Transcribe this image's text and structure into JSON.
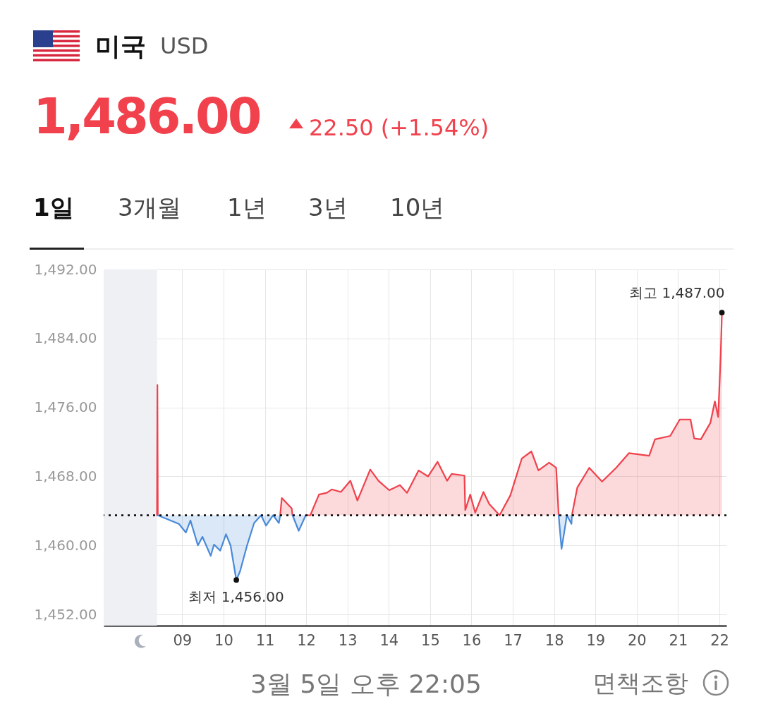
{
  "chart_data": {
    "type": "area",
    "title": "미국",
    "subtitle": "USD",
    "xlim": [
      7.1,
      22.17
    ],
    "xticks": [
      {
        "value": 9,
        "label": "09"
      },
      10,
      11,
      12,
      13,
      14,
      15,
      16,
      17,
      18,
      19,
      20,
      21,
      22
    ],
    "ylim": [
      1450.7,
      1492
    ],
    "yticks": [
      {
        "value": 1452,
        "label": "1,452.00"
      },
      {
        "value": 1460,
        "label": "1,460.00"
      },
      {
        "value": 1468,
        "label": "1,468.00"
      },
      {
        "value": 1476,
        "label": "1,476.00"
      },
      {
        "value": 1484,
        "label": "1,484.00"
      },
      {
        "value": 1492,
        "label": "1,492.00"
      }
    ],
    "grid": true,
    "series": [
      {
        "color": "#f0414c",
        "x": [
          8.39,
          8.4,
          8.41,
          8.5,
          11.37,
          11.41,
          11.65,
          11.67,
          11.8,
          11.99,
          12.1,
          12.31,
          12.5,
          12.62,
          12.84,
          13.07,
          13.24,
          13.55,
          13.75,
          14.01,
          14.27,
          14.44,
          14.72,
          14.95,
          15.18,
          15.41,
          15.52,
          15.83,
          15.85,
          15.97,
          16.09,
          16.29,
          16.43,
          16.68,
          16.94,
          17.22,
          17.45,
          17.62,
          17.88,
          18.05,
          18.11,
          18.2,
          18.43,
          18.56,
          18.85,
          19.16,
          19.5,
          19.81,
          20.3,
          20.44,
          20.81,
          21.04,
          21.3,
          21.39,
          21.55,
          21.78,
          21.89,
          21.97,
          22.03,
          22.06
        ],
        "values": [
          1463.5,
          1478.6,
          1463.5,
          null,
          1463.5,
          1465.5,
          1464.3,
          1463.5,
          null,
          1463.5,
          1463.5,
          1465.9,
          1466.1,
          1466.5,
          1466.2,
          1467.5,
          1465.2,
          1468.8,
          1467.5,
          1466.4,
          1467.0,
          1466.1,
          1468.7,
          1468.0,
          1469.7,
          1467.5,
          1468.3,
          1468.1,
          1464.1,
          1465.9,
          1463.8,
          1466.2,
          1464.8,
          1463.5,
          1465.8,
          1470.1,
          1470.9,
          1468.7,
          1469.6,
          1469.0,
          1463.5,
          null,
          1463.5,
          1466.7,
          1469.0,
          1467.4,
          1469.0,
          1470.7,
          1470.4,
          1472.3,
          1472.7,
          1474.6,
          1474.6,
          1472.4,
          1472.3,
          1474.2,
          1476.7,
          1474.9,
          1482.0,
          1486.8
        ]
      },
      {
        "color": "#4a8ad8",
        "x": [
          8.41,
          8.92,
          9.09,
          9.2,
          9.38,
          9.49,
          9.69,
          9.77,
          9.92,
          10.06,
          10.17,
          10.31,
          10.4,
          10.57,
          10.74,
          10.91,
          11.03,
          11.2,
          11.34,
          11.37,
          11.5,
          11.67,
          11.82,
          11.99,
          12.5,
          18.11,
          18.18,
          18.31,
          18.42,
          18.43
        ],
        "values": [
          1463.5,
          1462.5,
          1461.5,
          1462.9,
          1460.0,
          1461.0,
          1458.8,
          1460.1,
          1459.4,
          1461.3,
          1460.0,
          1456.0,
          1457.0,
          1460.0,
          1462.6,
          1463.5,
          1462.3,
          1463.5,
          1462.6,
          1463.5,
          null,
          1463.5,
          1461.7,
          1463.5,
          null,
          1463.5,
          1459.6,
          1463.5,
          1462.5,
          1463.5
        ]
      }
    ],
    "ref_lines": [
      {
        "axis": "y",
        "value": 1463.5,
        "color": "#000000",
        "line_style": "dotted"
      }
    ],
    "bands": [
      {
        "axis": "x",
        "from": 7.1,
        "to": 8.39,
        "color": "#eef0f4"
      }
    ],
    "annotations": [
      "1,486.00",
      "22.50 (+1.54%)",
      "1일",
      "3개월",
      "1년",
      "3년",
      "10년",
      "3월 5일 오후 22:05",
      "면책조항",
      {
        "text": "최저 1,456.00",
        "x": 10.31,
        "y": 1456
      },
      {
        "text": "최고 1,487.00",
        "x": 22.06,
        "y": 1487
      }
    ]
  }
}
